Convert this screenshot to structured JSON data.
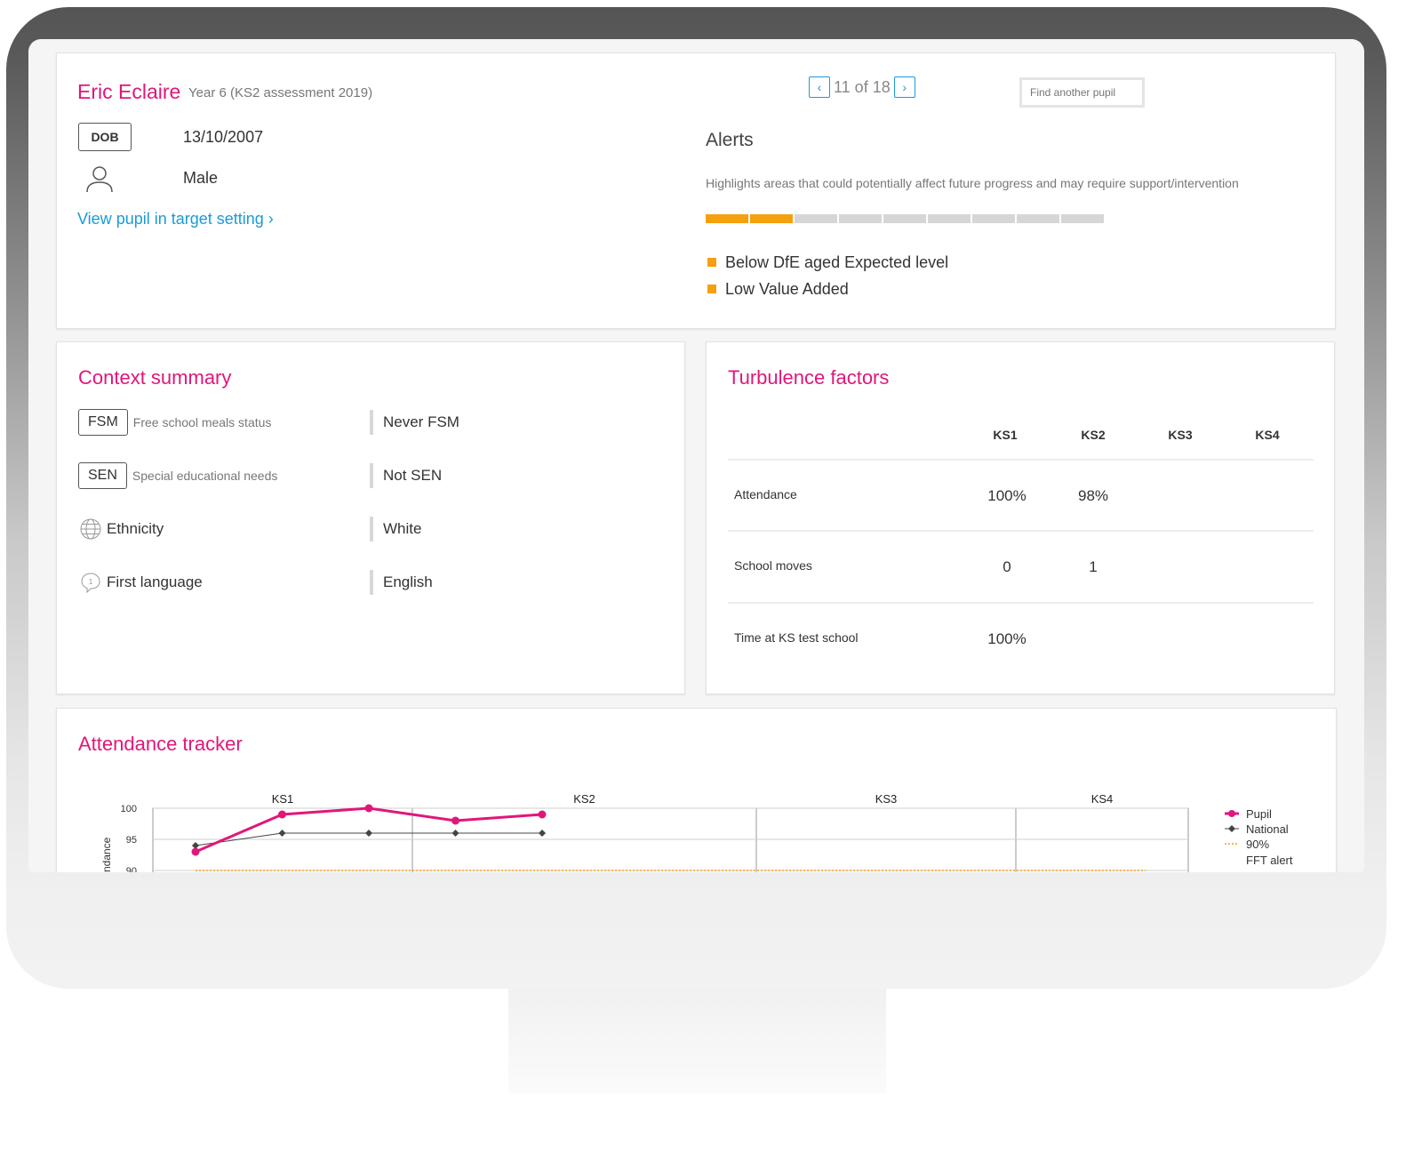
{
  "pupil": {
    "name": "Eric Eclaire",
    "year": "Year 6 (KS2 assessment 2019)",
    "dob_label": "DOB",
    "dob": "13/10/2007",
    "gender": "Male",
    "target_link": "View pupil in target setting  ›"
  },
  "pager": {
    "prev": "‹",
    "next": "›",
    "text": "11 of 18"
  },
  "search": {
    "placeholder": "Find another pupil"
  },
  "alerts": {
    "title": "Alerts",
    "subtitle": "Highlights areas that could potentially affect future progress and may require support/intervention",
    "level_filled": 2,
    "level_total": 9,
    "items": [
      "Below DfE aged Expected level",
      "Low Value Added"
    ],
    "color": "#f5a00f"
  },
  "context": {
    "title": "Context summary",
    "rows": [
      {
        "badge": "FSM",
        "desc": "Free school meals status",
        "value": "Never FSM"
      },
      {
        "badge": "SEN",
        "desc": "Special educational needs",
        "value": "Not SEN"
      },
      {
        "icon": "globe-icon",
        "label": "Ethnicity",
        "value": "White"
      },
      {
        "icon": "speech-bubble-icon",
        "label": "First language",
        "value": "English"
      }
    ]
  },
  "turbulence": {
    "title": "Turbulence factors",
    "columns": [
      "KS1",
      "KS2",
      "KS3",
      "KS4"
    ],
    "rows": [
      {
        "label": "Attendance",
        "values": [
          "100%",
          "98%",
          "",
          ""
        ]
      },
      {
        "label": "School moves",
        "values": [
          "0",
          "1",
          "",
          ""
        ]
      },
      {
        "label": "Time at KS test school",
        "values": [
          "100%",
          "",
          "",
          ""
        ]
      }
    ]
  },
  "attendance": {
    "title": "Attendance tracker"
  },
  "chart_data": {
    "type": "line",
    "title": "",
    "ylabel": "Attendance",
    "ylim": [
      90,
      100
    ],
    "yticks": [
      100,
      95,
      90
    ],
    "stages": [
      "KS1",
      "KS2",
      "KS3",
      "KS4"
    ],
    "x": [
      1,
      2,
      3,
      4,
      5
    ],
    "series": [
      {
        "name": "Pupil",
        "values": [
          93,
          99,
          100,
          98,
          99
        ],
        "color": "#e0177a"
      },
      {
        "name": "National",
        "values": [
          94,
          96,
          96,
          96,
          96
        ],
        "color": "#444444"
      },
      {
        "name": "90% FFT alert",
        "values": [
          90,
          90,
          90,
          90,
          90
        ],
        "color": "#f5a00f",
        "style": "dotted"
      }
    ],
    "legend_position": "right",
    "legend_labels": [
      "Pupil",
      "National",
      "90%",
      "FFT alert"
    ]
  },
  "colors": {
    "accent": "#e0177a",
    "link": "#1a9bd7",
    "alert": "#f5a00f"
  }
}
